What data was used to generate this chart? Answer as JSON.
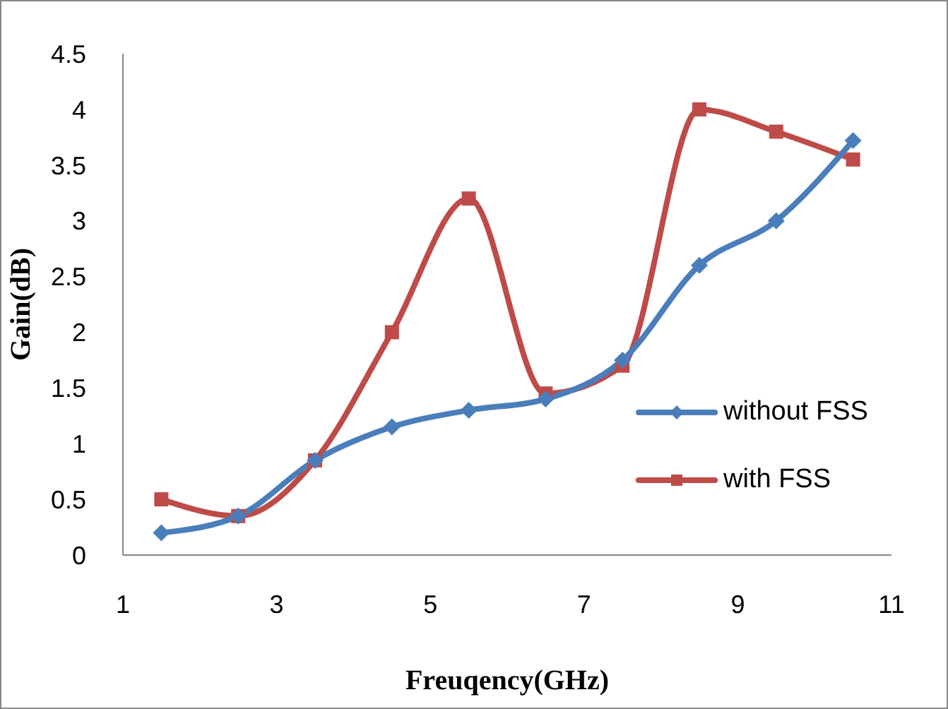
{
  "chart_data": {
    "type": "line",
    "xlabel": "Freuqency(GHz)",
    "ylabel": "Gain(dB)",
    "x": [
      1.5,
      2.5,
      3.5,
      4.5,
      5.5,
      6.5,
      7.5,
      8.5,
      9.5,
      10.5
    ],
    "series": [
      {
        "name": "without FSS",
        "color": "#4a7ebb",
        "marker": "diamond",
        "values": [
          0.2,
          0.35,
          0.85,
          1.15,
          1.3,
          1.4,
          1.75,
          2.6,
          3.0,
          3.72
        ]
      },
      {
        "name": "with FSS",
        "color": "#be4b48",
        "marker": "square",
        "values": [
          0.5,
          0.35,
          0.85,
          2.0,
          3.2,
          1.45,
          1.7,
          4.0,
          3.8,
          3.55
        ]
      }
    ],
    "xlim": [
      1,
      11
    ],
    "xticks": [
      1,
      3,
      5,
      7,
      9,
      11
    ],
    "ylim": [
      0,
      4.5
    ],
    "yticks": [
      0,
      0.5,
      1,
      1.5,
      2,
      2.5,
      3,
      3.5,
      4,
      4.5
    ],
    "grid": false,
    "legend": "right",
    "line_style": "solid"
  }
}
